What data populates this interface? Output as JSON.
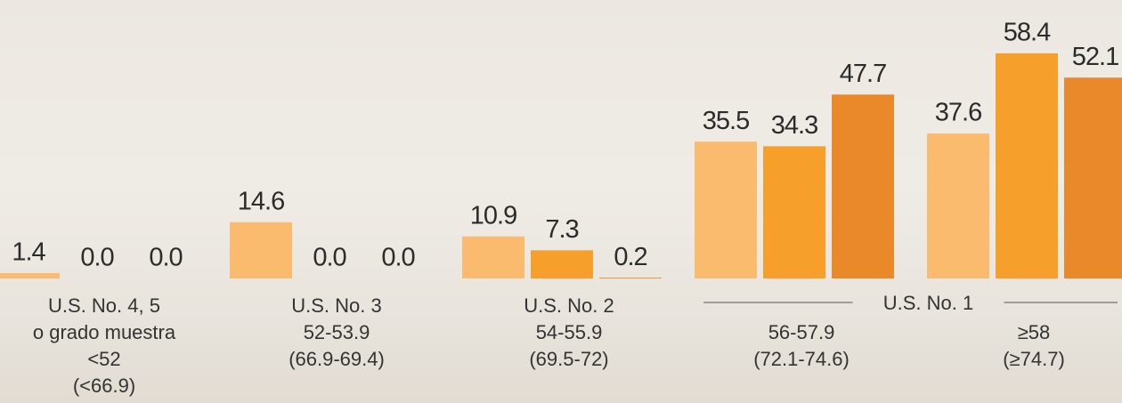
{
  "chart_data": {
    "type": "bar",
    "categories": [
      [
        "U.S. No. 4, 5",
        "o grado muestra",
        "<52",
        "(<66.9)"
      ],
      [
        "U.S. No. 3",
        "52-53.9",
        "(66.9-69.4)"
      ],
      [
        "U.S. No. 2",
        "54-55.9",
        "(69.5-72)"
      ],
      [
        "56-57.9",
        "(72.1-74.6)"
      ],
      [
        "≥58",
        "(≥74.7)"
      ]
    ],
    "group_label": {
      "text": "U.S. No. 1",
      "categories": [
        3,
        4
      ]
    },
    "series": [
      {
        "color": "#fbbb6e",
        "values": [
          1.4,
          14.6,
          10.9,
          35.5,
          37.6
        ],
        "value_labels": [
          "1.4",
          "14.6",
          "10.9",
          "35.5",
          "37.6"
        ]
      },
      {
        "color": "#f6a02b",
        "values": [
          0.0,
          0.0,
          7.3,
          34.3,
          58.4
        ],
        "value_labels": [
          "0.0",
          "0.0",
          "7.3",
          "34.3",
          "58.4"
        ]
      },
      {
        "color": "#e9892a",
        "values": [
          0.0,
          0.0,
          0.2,
          47.7,
          52.1
        ],
        "value_labels": [
          "0.0",
          "0.0",
          "0.2",
          "47.7",
          "52.1"
        ]
      }
    ],
    "ylim": [
      0,
      60
    ]
  }
}
